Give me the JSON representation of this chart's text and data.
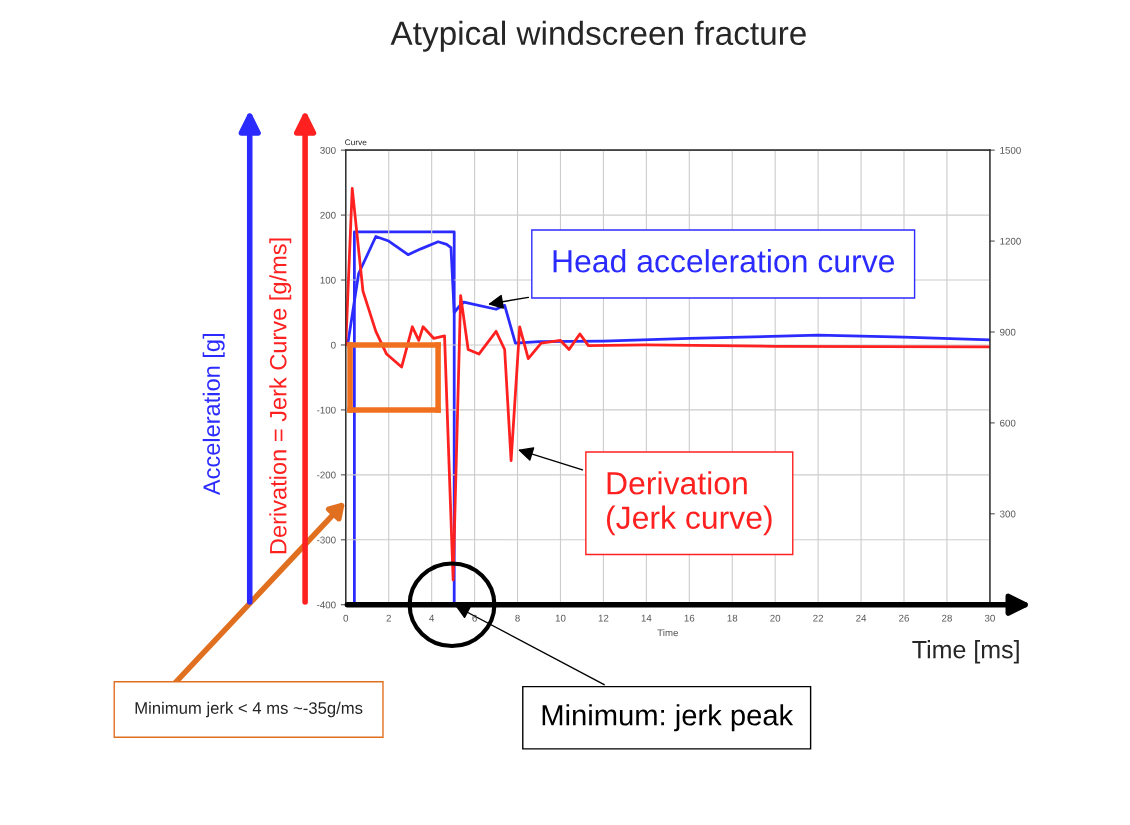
{
  "chart_data": {
    "type": "line",
    "title": "Atypical windscreen fracture",
    "xlabel": "Time",
    "ylabel": "Acceleration [g]",
    "xlim": [
      0,
      30
    ],
    "xticks": [
      0,
      2,
      4,
      6,
      8,
      10,
      12,
      14,
      16,
      18,
      20,
      22,
      24,
      26,
      28,
      30
    ],
    "ylim": [
      -400,
      300
    ],
    "yticks": [
      -400,
      -300,
      -200,
      -100,
      0,
      100,
      200,
      300
    ],
    "y2lim": [
      0,
      1500
    ],
    "y2ticks": [
      300,
      600,
      900,
      1200,
      1500
    ],
    "grid": true,
    "series": [
      {
        "color": "#2b2bff",
        "x": [
          0.1,
          0.6,
          1.4,
          2.0,
          2.9,
          3.5,
          4.3,
          4.7,
          4.9,
          5.05,
          5.3,
          5.5,
          7.0,
          7.4,
          7.9,
          9,
          12,
          16,
          22,
          26,
          30
        ],
        "values": [
          3,
          110,
          167,
          160,
          139,
          148,
          159,
          155,
          150,
          50,
          60,
          66,
          55,
          61,
          3,
          5,
          6,
          10,
          15,
          12,
          8
        ]
      },
      {
        "color": "#2b2bff",
        "axis": "y2",
        "x": [
          0.4,
          0.4,
          5.05,
          5.05
        ],
        "values": [
          0,
          1230,
          1230,
          0
        ]
      },
      {
        "color": "#ff2020",
        "x": [
          0,
          0.3,
          0.8,
          1.4,
          1.9,
          2.6,
          3.1,
          3.4,
          3.6,
          4.1,
          4.6,
          5.0,
          5.35,
          5.7,
          6.2,
          7.0,
          7.4,
          7.7,
          8.1,
          8.5,
          9.1,
          10.0,
          10.4,
          10.9,
          11.3,
          14,
          20,
          30
        ],
        "values": [
          0,
          241,
          83,
          21,
          -14,
          -34,
          28,
          7,
          28,
          10,
          14,
          -362,
          76,
          -7,
          -14,
          21,
          -7,
          -178,
          28,
          -21,
          3,
          7,
          -7,
          17,
          -1,
          0,
          -2,
          -3
        ]
      }
    ],
    "annotations": [
      "Curve",
      "Derivation = Jerk Curve [g/ms]",
      "Time [ms]",
      "Minimum jerk < 4 ms ~-35g/ms",
      {
        "text": "Head acceleration curve",
        "x": 6.5,
        "y": 62
      },
      {
        "text": "Derivation\n(Jerk curve)",
        "x": 7.9,
        "y": -160
      },
      {
        "text": "Minimum: jerk peak",
        "x": 5,
        "y": -400
      }
    ]
  }
}
